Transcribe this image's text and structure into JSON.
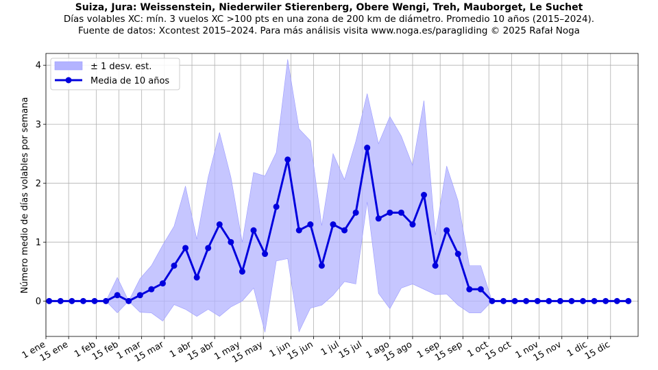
{
  "chart_data": {
    "type": "line",
    "title": "Suiza, Jura: Weissenstein, Niederwiler Stierenberg, Obere Wengi, Treh, Mauborget, Le Suchet",
    "subtitle": "Días volables XC: mín. 3 vuelos XC >100 pts en una zona de 200 km de diámetro. Promedio 10 años (2015–2024).",
    "subtitle2": "Fuente de datos: Xcontest 2015–2024. Para más análisis visita www.noga.es/paragliding © 2025 Rafał Noga",
    "xlabel": "",
    "ylabel": "Número medio de días volables por semana",
    "ylim": [
      -0.6,
      4.2
    ],
    "yticks": [
      0,
      1,
      2,
      3,
      4
    ],
    "xticklabels": [
      "1 ene",
      "15 ene",
      "1 feb",
      "15 feb",
      "1 mar",
      "15 mar",
      "1 abr",
      "15 abr",
      "1 may",
      "15 may",
      "1 jun",
      "15 jun",
      "1 jul",
      "15 jul",
      "1 ago",
      "15 ago",
      "1 sep",
      "15 sep",
      "1 oct",
      "15 oct",
      "1 nov",
      "15 nov",
      "1 dic",
      "15 dic"
    ],
    "xtick_days": [
      1,
      15,
      32,
      46,
      60,
      74,
      91,
      105,
      121,
      135,
      152,
      166,
      182,
      196,
      213,
      227,
      244,
      258,
      274,
      288,
      305,
      319,
      335,
      349
    ],
    "x_days": [
      3,
      10,
      17,
      24,
      31,
      38,
      45,
      52,
      59,
      66,
      73,
      80,
      87,
      94,
      101,
      108,
      115,
      122,
      129,
      136,
      143,
      150,
      157,
      164,
      171,
      178,
      185,
      192,
      199,
      206,
      213,
      220,
      227,
      234,
      241,
      248,
      255,
      262,
      269,
      276,
      283,
      290,
      297,
      304,
      311,
      318,
      325,
      332,
      339,
      346,
      353,
      360
    ],
    "x_range": [
      1,
      366
    ],
    "grid": true,
    "legend_position": "upper-left",
    "series": [
      {
        "name": "Media de 10 años",
        "color": "#0000dd",
        "values": [
          0,
          0,
          0,
          0,
          0,
          0,
          0.1,
          0,
          0.1,
          0.2,
          0.3,
          0.6,
          0.9,
          0.4,
          0.9,
          1.3,
          1.0,
          0.5,
          1.2,
          0.8,
          1.6,
          2.4,
          1.2,
          1.3,
          0.6,
          1.3,
          1.2,
          1.5,
          2.6,
          1.4,
          1.5,
          1.5,
          1.3,
          1.8,
          0.6,
          1.2,
          0.8,
          0.2,
          0.2,
          0,
          0,
          0,
          0,
          0,
          0,
          0,
          0,
          0,
          0,
          0,
          0,
          0
        ]
      }
    ],
    "band": {
      "name": "± 1 desv. est.",
      "color": "#b3b3ff",
      "upper": [
        0,
        0,
        0,
        0,
        0,
        0,
        0.4,
        0,
        0.38,
        0.6,
        0.95,
        1.27,
        1.95,
        1.05,
        2.1,
        2.86,
        2.1,
        1.0,
        2.18,
        2.12,
        2.52,
        4.1,
        2.92,
        2.72,
        1.28,
        2.5,
        2.06,
        2.71,
        3.52,
        2.67,
        3.13,
        2.8,
        2.3,
        3.4,
        1.12,
        2.29,
        1.7,
        0.6,
        0.6,
        0,
        0,
        0,
        0,
        0,
        0,
        0,
        0,
        0,
        0,
        0,
        0,
        0
      ],
      "lower": [
        0,
        0,
        0,
        0,
        0,
        0,
        -0.2,
        0,
        -0.19,
        -0.2,
        -0.34,
        -0.06,
        -0.14,
        -0.26,
        -0.14,
        -0.26,
        -0.1,
        0,
        0.22,
        -0.53,
        0.68,
        0.72,
        -0.52,
        -0.12,
        -0.07,
        0.1,
        0.33,
        0.29,
        1.68,
        0.13,
        -0.13,
        0.22,
        0.29,
        0.2,
        0.11,
        0.12,
        -0.07,
        -0.2,
        -0.2,
        0,
        0,
        0,
        0,
        0,
        0,
        0,
        0,
        0,
        0,
        0,
        0,
        0
      ]
    }
  }
}
